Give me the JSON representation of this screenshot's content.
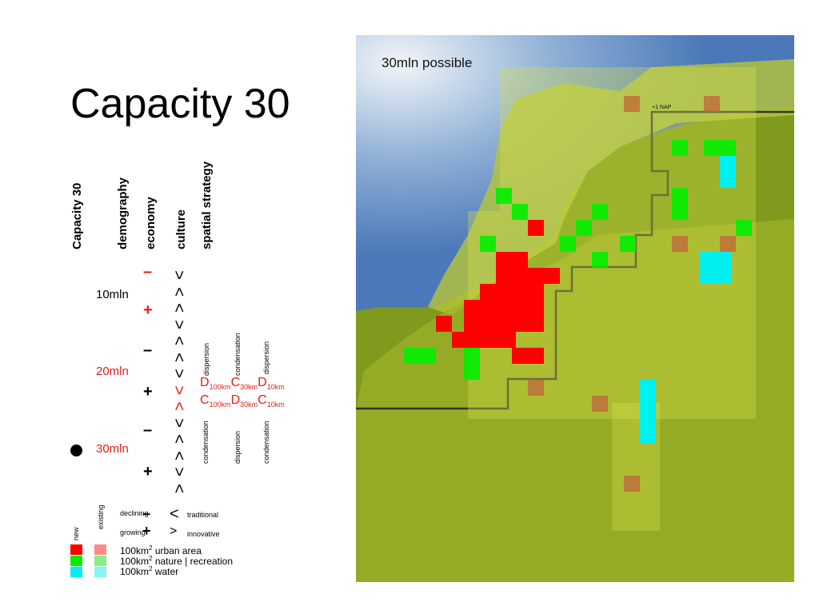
{
  "title": "Capacity 30",
  "headers": [
    "Capacity 30",
    "demography",
    "economy",
    "culture",
    "spatial strategy"
  ],
  "demography": [
    "10mln",
    "20mln",
    "30mln"
  ],
  "economy": [
    "–",
    "+",
    "–",
    "+",
    "–",
    "+"
  ],
  "culture": [
    "<",
    ">",
    ">",
    "<",
    ">",
    ">",
    "<",
    "<",
    ">",
    "<",
    ">",
    ">",
    "<",
    ">"
  ],
  "strategy": {
    "top": [
      "dispersion",
      "condensation",
      "dispersion"
    ],
    "row1": [
      [
        "D",
        "100km"
      ],
      [
        "C",
        "30km"
      ],
      [
        "D",
        "10km"
      ]
    ],
    "row2": [
      [
        "C",
        "100km"
      ],
      [
        "D",
        "30km"
      ],
      [
        "C",
        "10km"
      ]
    ],
    "bottom": [
      "condensation",
      "dispersion",
      "condensation"
    ]
  },
  "legend": {
    "new": "new",
    "existing": "existing",
    "declining": "declining",
    "growing": "growing",
    "minus": "–",
    "plus": "+",
    "lt": "<",
    "gt": ">",
    "traditional": "traditional",
    "innovative": "innovative",
    "items": [
      {
        "unit": "100km",
        "sup": "2",
        "label": " urban area"
      },
      {
        "unit": "100km",
        "sup": "2",
        "label": " nature | recreation"
      },
      {
        "unit": "100km",
        "sup": "2",
        "label": " water"
      }
    ]
  },
  "map": {
    "label": "30mln possible",
    "nap": "+1 NAP"
  }
}
